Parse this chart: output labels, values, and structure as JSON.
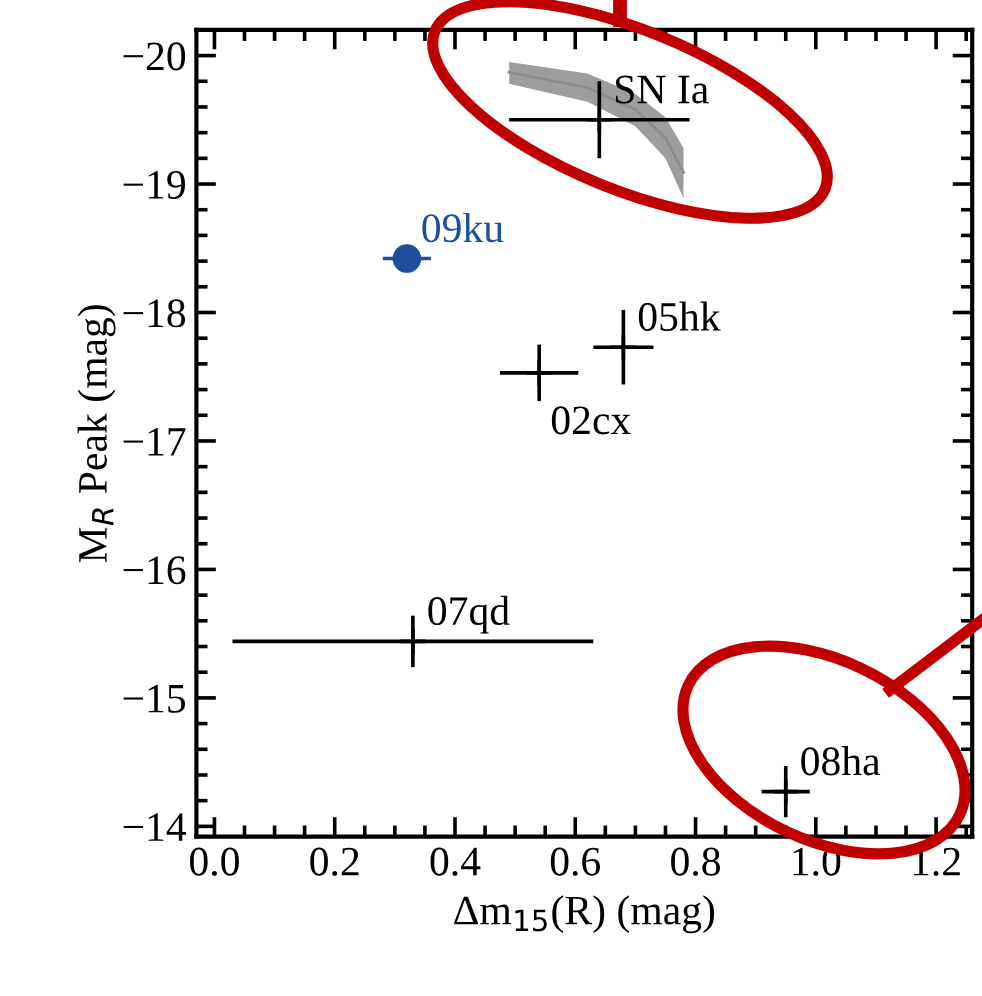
{
  "chart_data": {
    "type": "scatter",
    "xlabel": "Δm$_{15}$(R) (mag)",
    "ylabel": "M$_{R}$ Peak (mag)",
    "xlim": [
      -0.03,
      1.26
    ],
    "xticks": [
      {
        "value": 0,
        "label": "0.0"
      },
      0.2,
      0.4,
      0.6,
      0.8,
      {
        "value": 1,
        "label": "1.0"
      },
      1.2
    ],
    "ylim": [
      -13.92,
      -20.2
    ],
    "yticks": [
      -20,
      -19,
      -18,
      -17,
      -16,
      -15,
      -14
    ],
    "grid": false,
    "series": [
      {
        "name": null,
        "type": "line",
        "color": "#8c8c8c",
        "x": [
          0.49,
          0.62,
          0.7,
          0.75,
          0.78
        ],
        "values": [
          -19.87,
          -19.75,
          -19.58,
          -19.36,
          -19.09
        ],
        "lower": [
          -19.78,
          -19.64,
          -19.45,
          -19.2,
          -18.89
        ],
        "upper": [
          -19.95,
          -19.86,
          -19.7,
          -19.52,
          -19.28
        ]
      },
      {
        "name": "SN Ia",
        "color": "#000000",
        "marker": "cross",
        "x": [
          0.64
        ],
        "values": [
          -19.5
        ],
        "xerrors": [
          0.15
        ],
        "errors": [
          0.3
        ]
      },
      {
        "name": "09ku",
        "color": "#1f4e9c",
        "marker": "circle",
        "x": [
          0.32
        ],
        "values": [
          -18.42
        ],
        "xerrors": [
          0.04
        ],
        "errors": [
          0.1
        ]
      },
      {
        "name": "05hk",
        "color": "#000000",
        "marker": "cross",
        "x": [
          0.68
        ],
        "values": [
          -17.73
        ],
        "xerrors": [
          0.05
        ],
        "errors": [
          0.29
        ]
      },
      {
        "name": "02cx",
        "color": "#000000",
        "marker": "cross",
        "x": [
          0.54
        ],
        "values": [
          -17.53
        ],
        "xerrors": [
          0.065
        ],
        "errors": [
          0.22
        ]
      },
      {
        "name": "07qd",
        "color": "#000000",
        "marker": "cross",
        "x": [
          0.33
        ],
        "values": [
          -15.44
        ],
        "xerrors": [
          0.3
        ],
        "errors": [
          0.2
        ]
      },
      {
        "name": "08ha",
        "color": "#000000",
        "marker": "cross",
        "x": [
          0.95
        ],
        "values": [
          -14.27
        ],
        "xerrors": [
          0.04
        ],
        "errors": [
          0.2
        ]
      }
    ]
  }
}
